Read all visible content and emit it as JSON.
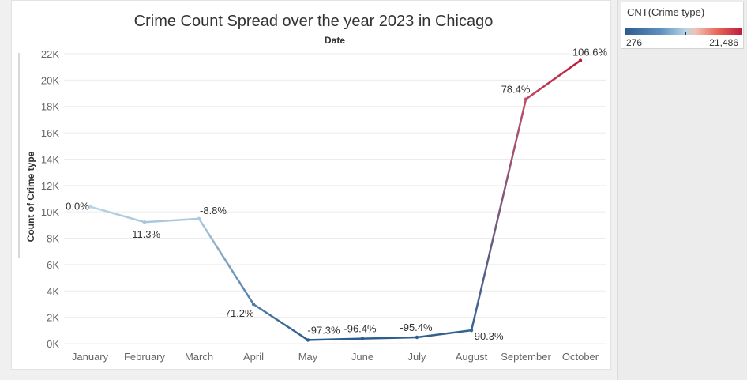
{
  "chart_data": {
    "type": "line",
    "title": "Crime Count Spread over the year 2023 in Chicago",
    "subtitle": "Date",
    "ylabel": "Count of Crime type",
    "categories": [
      "January",
      "February",
      "March",
      "April",
      "May",
      "June",
      "July",
      "August",
      "September",
      "October"
    ],
    "values": [
      10400,
      9220,
      9480,
      2990,
      276,
      380,
      480,
      1010,
      18550,
      21486
    ],
    "point_labels": [
      "0.0%",
      "-11.3%",
      "-8.8%",
      "-71.2%",
      "-97.3%",
      "-96.4%",
      "-95.4%",
      "-90.3%",
      "78.4%",
      "106.6%"
    ],
    "ylim": [
      0,
      22000
    ],
    "yticks": [
      0,
      2000,
      4000,
      6000,
      8000,
      10000,
      12000,
      14000,
      16000,
      18000,
      20000,
      22000
    ],
    "ytick_labels": [
      "0K",
      "2K",
      "4K",
      "6K",
      "8K",
      "10K",
      "12K",
      "14K",
      "16K",
      "18K",
      "20K",
      "22K"
    ],
    "grid": true,
    "color_scale": {
      "title": "CNT(Crime type)",
      "min_label": "276",
      "max_label": "21,486",
      "min": 276,
      "max": 21486,
      "center": 10500,
      "colors": [
        "#2c5d8d",
        "#b9d6e6",
        "#bf1a3a"
      ]
    },
    "legend": "top-right"
  }
}
